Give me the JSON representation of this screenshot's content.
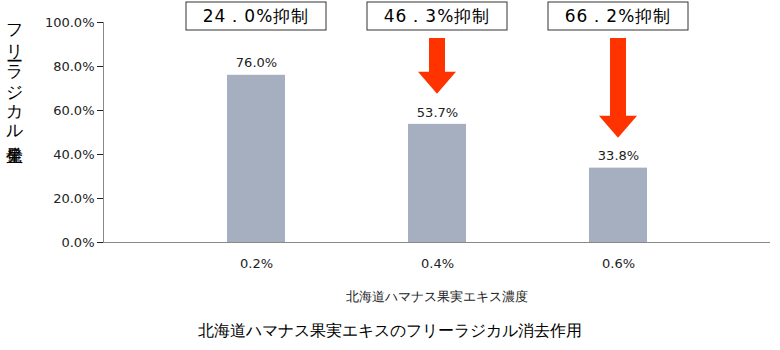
{
  "chart_data": {
    "type": "bar",
    "title": "北海道ハマナス果実エキスのフリーラジカル消去作用",
    "x_label": "北海道ハマナス果実エキス濃度",
    "y_label": "フリーラジカル発生量",
    "categories": [
      "0.2%",
      "0.4%",
      "0.6%"
    ],
    "values": [
      76.0,
      53.7,
      33.8
    ],
    "value_labels": [
      "76.0%",
      "53.7%",
      "33.8%"
    ],
    "data_labels": true,
    "color": "#a5afbf",
    "ylim": [
      0,
      100
    ],
    "yticks": [
      {
        "value": 0,
        "label": "0.0%"
      },
      {
        "value": 20,
        "label": "20.0%"
      },
      {
        "value": 40,
        "label": "40.0%"
      },
      {
        "value": 60,
        "label": "60.0%"
      },
      {
        "value": 80,
        "label": "80.0%"
      },
      {
        "value": 100,
        "label": "100.0%"
      }
    ],
    "grid": false,
    "annotations": [
      {
        "x": "0.2%",
        "text": "24．0%抑制"
      },
      {
        "x": "0.4%",
        "text": "46．3%抑制"
      },
      {
        "x": "0.6%",
        "text": "66．2%抑制"
      }
    ]
  }
}
